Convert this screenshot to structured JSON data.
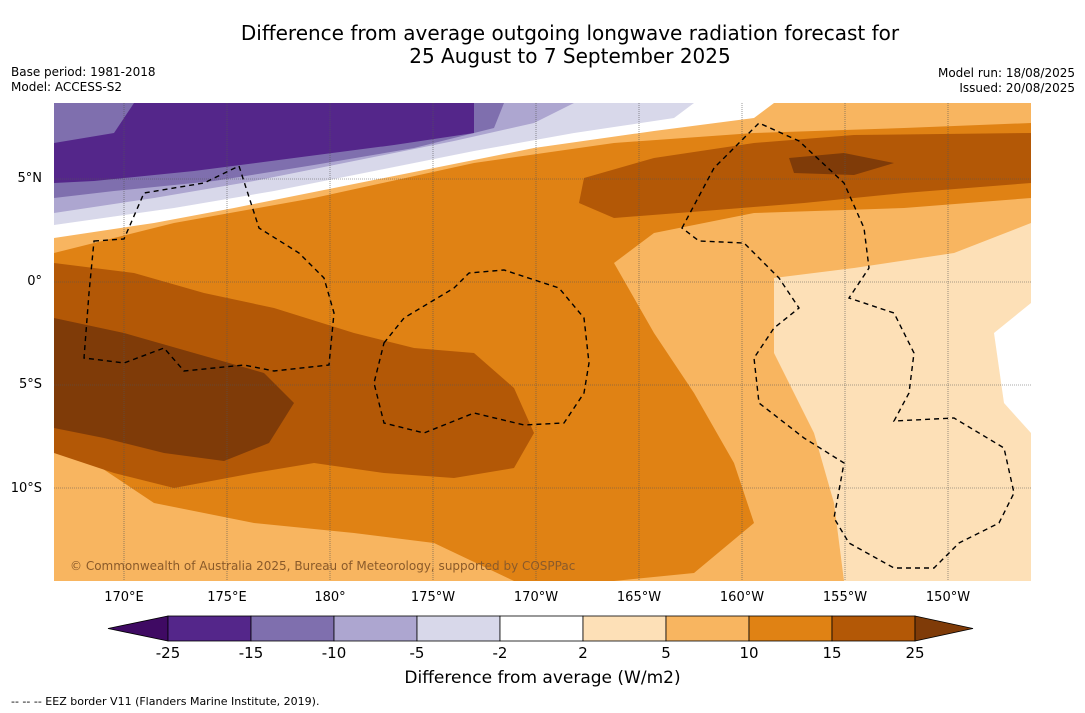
{
  "title_line1": "Difference from average outgoing longwave radiation forecast for",
  "title_line2": "25 August to 7 September 2025",
  "base_period": "Base period: 1981-2018",
  "model": "Model: ACCESS-S2",
  "model_run": "Model run: 18/08/2025",
  "issued": "Issued: 20/08/2025",
  "copyright": "© Commonwealth of Australia 2025, Bureau of Meteorology, supported by COSPPac",
  "latitude_labels": [
    "5°N",
    "0°",
    "5°S",
    "10°S"
  ],
  "longitude_labels": [
    "170°E",
    "175°E",
    "180°",
    "175°W",
    "170°W",
    "165°W",
    "160°W",
    "155°W",
    "150°W"
  ],
  "colorbar": {
    "title": "Difference from average (W/m2)",
    "ticks": [
      "-25",
      "-15",
      "-10",
      "-5",
      "-2",
      "2",
      "5",
      "10",
      "15",
      "25"
    ],
    "colors": [
      "#3f0a63",
      "#54268a",
      "#7f6fae",
      "#ada6d0",
      "#d8d8ea",
      "#ffffff",
      "#fde0b7",
      "#f8b560",
      "#e08214",
      "#b35806",
      "#7f3b08"
    ]
  },
  "footnote": "--  --  -- EEZ border V11 (Flanders Marine Institute, 2019)."
}
